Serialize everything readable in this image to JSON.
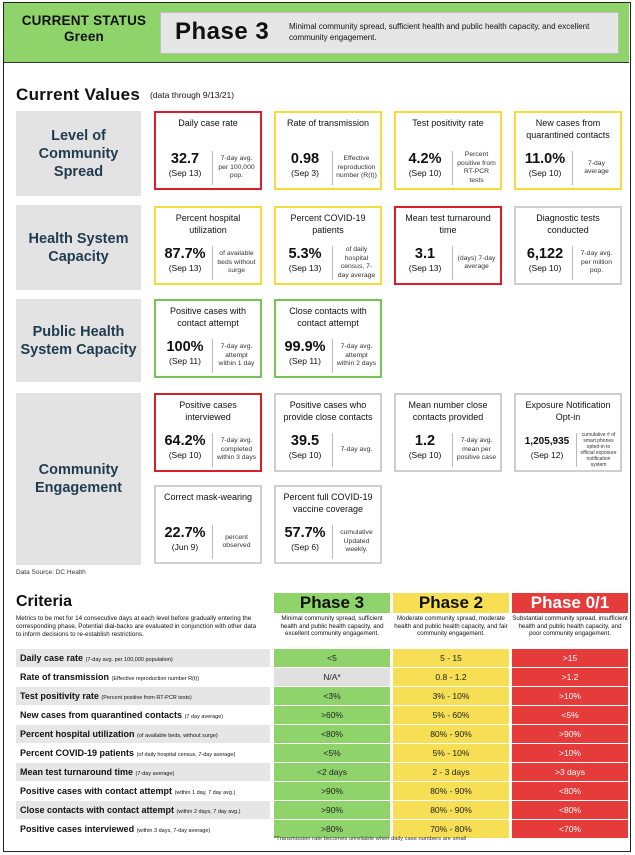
{
  "header": {
    "status_line1": "CURRENT STATUS",
    "status_line2": "Green",
    "phase_title": "Phase 3",
    "phase_desc": "Minimal community spread, sufficient health and public health capacity, and excellent community engagement."
  },
  "current_values": {
    "title": "Current Values",
    "subtitle": "(data through 9/13/21)"
  },
  "categories": {
    "spread": "Level of Community Spread",
    "health": "Health System Capacity",
    "public": "Public Health System Capacity",
    "engagement": "Community Engagement"
  },
  "cards": {
    "daily_case_rate": {
      "title": "Daily case rate",
      "value": "32.7",
      "date": "(Sep 13)",
      "note": "7-day avg. per 100,000 pop.",
      "status": "red"
    },
    "rate_of_transmission": {
      "title": "Rate of transmission",
      "value": "0.98",
      "date": "(Sep 3)",
      "note": "Effective reproduction number (R(t))",
      "status": "yellow"
    },
    "test_positivity": {
      "title": "Test positivity rate",
      "value": "4.2%",
      "date": "(Sep 10)",
      "note": "Percent positive from RT-PCR tests",
      "status": "yellow"
    },
    "new_cases_quarantined": {
      "title": "New cases from quarantined contacts",
      "value": "11.0%",
      "date": "(Sep 10)",
      "note": "7-day average",
      "status": "yellow"
    },
    "hospital_utilization": {
      "title": "Percent hospital utilization",
      "value": "87.7%",
      "date": "(Sep 13)",
      "note": "of available beds without surge",
      "status": "yellow"
    },
    "covid_patients": {
      "title": "Percent COVID-19 patients",
      "value": "5.3%",
      "date": "(Sep 13)",
      "note": "of daily hospital census, 7-day average",
      "status": "yellow"
    },
    "test_turnaround": {
      "title": "Mean test turnaround time",
      "value": "3.1",
      "date": "(Sep 13)",
      "note": "(days) 7-day average",
      "status": "red"
    },
    "diagnostic_tests": {
      "title": "Diagnostic tests conducted",
      "value": "6,122",
      "date": "(Sep 10)",
      "note": "7-day avg. per million pop.",
      "status": "gray"
    },
    "positive_contact_attempt": {
      "title": "Positive cases with contact attempt",
      "value": "100%",
      "date": "(Sep 11)",
      "note": "7-day avg. attempt within 1 day",
      "status": "green"
    },
    "close_contact_attempt": {
      "title": "Close contacts with contact attempt",
      "value": "99.9%",
      "date": "(Sep 11)",
      "note": "7-day avg. attempt within 2 days",
      "status": "green"
    },
    "positive_interviewed": {
      "title": "Positive cases interviewed",
      "value": "64.2%",
      "date": "(Sep 10)",
      "note": "7-day avg. completed within 3 days",
      "status": "red"
    },
    "provide_close_contacts": {
      "title": "Positive cases who provide close contacts",
      "value": "39.5",
      "date": "(Sep 10)",
      "note": "7-day avg.",
      "status": "gray"
    },
    "mean_close_contacts": {
      "title": "Mean number close contacts provided",
      "value": "1.2",
      "date": "(Sep 10)",
      "note": "7-day avg. mean per positive case",
      "status": "gray"
    },
    "exposure_notification": {
      "title": "Exposure Notification Opt-in",
      "value": "1,205,935",
      "date": "(Sep 12)",
      "note": "cumulative # of smart phones opted-in to official exposure notification system",
      "status": "gray"
    },
    "mask_wearing": {
      "title": "Correct mask-wearing",
      "value": "22.7%",
      "date": "(Jun 9)",
      "note": "percent observed",
      "status": "gray"
    },
    "vaccine_coverage": {
      "title": "Percent full COVID-19 vaccine coverage",
      "value": "57.7%",
      "date": "(Sep 6)",
      "note": "cumulative Updated weekly.",
      "status": "gray"
    }
  },
  "data_source": "Data Source: DC Health",
  "criteria": {
    "title": "Criteria",
    "description": "Metrics to be met for 14 consecutive days at each level before gradually entering the corresponding phase. Potential dial-backs are evaluated in conjunction with other data to inform decisions to re-establish restrictions.",
    "phases": [
      {
        "name": "Phase 3",
        "desc": "Minimal community spread, sufficient health and public health capacity, and excellent community engagement.",
        "color": "#8fd36b"
      },
      {
        "name": "Phase 2",
        "desc": "Moderate community spread, moderate health and public health capacity, and fair community engagement.",
        "color": "#f6de55"
      },
      {
        "name": "Phase 0/1",
        "desc": "Substantial community spread, insufficient health and public health capacity, and poor community engagement.",
        "color": "#e63b3b"
      }
    ],
    "rows": [
      {
        "label": "Daily case rate",
        "sub": "(7-day avg. per 100,000 population)",
        "p3": "<5",
        "p2": "5 - 15",
        "p01": ">15"
      },
      {
        "label": "Rate of transmission",
        "sub": "(Effective reproduction number R(t))",
        "p3": "N/A*",
        "p2": "0.8 - 1.2",
        "p01": ">1.2"
      },
      {
        "label": "Test positivity rate",
        "sub": "(Percent positive from RT-PCR tests)",
        "p3": "<3%",
        "p2": "3% - 10%",
        "p01": ">10%"
      },
      {
        "label": "New cases from quarantined contacts",
        "sub": "(7 day average)",
        "p3": ">60%",
        "p2": "5% - 60%",
        "p01": "<5%"
      },
      {
        "label": "Percent hospital utilization",
        "sub": "(of available beds, without surge)",
        "p3": "<80%",
        "p2": "80% - 90%",
        "p01": ">90%"
      },
      {
        "label": "Percent COVID-19 patients",
        "sub": "(of daily hospital census, 7-day average)",
        "p3": "<5%",
        "p2": "5% - 10%",
        "p01": ">10%"
      },
      {
        "label": "Mean test turnaround time",
        "sub": "(7-day average)",
        "p3": "<2 days",
        "p2": "2 - 3 days",
        "p01": ">3 days"
      },
      {
        "label": "Positive cases with contact attempt",
        "sub": "(within 1 day, 7 day avg.)",
        "p3": ">90%",
        "p2": "80% - 90%",
        "p01": "<80%"
      },
      {
        "label": "Close contacts with contact attempt",
        "sub": "(within 2 days, 7 day avg.)",
        "p3": ">90%",
        "p2": "80% - 90%",
        "p01": "<80%"
      },
      {
        "label": "Positive cases interviewed",
        "sub": "(within 3 days, 7-day average)",
        "p3": ">80%",
        "p2": "70% - 80%",
        "p01": "<70%"
      }
    ],
    "footnote": "*Transmission rate becomes unreliable when daily case numbers are small"
  }
}
